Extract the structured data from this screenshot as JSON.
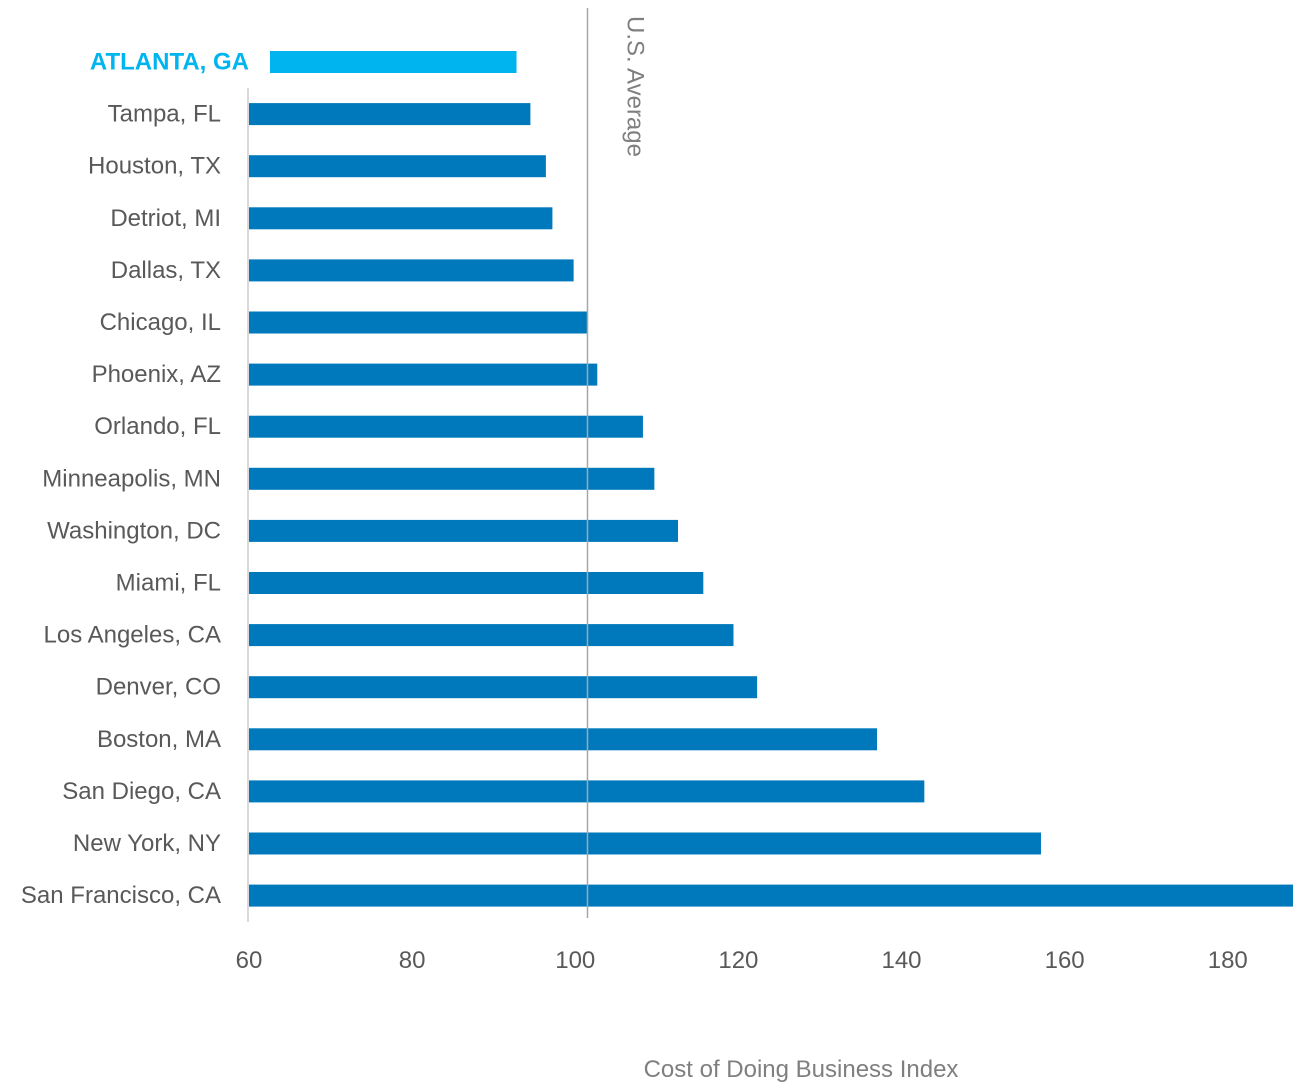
{
  "chart_data": {
    "type": "bar",
    "orientation": "horizontal",
    "categories": [
      "ATLANTA, GA",
      "Tampa, FL",
      "Houston, TX",
      "Detriot, MI",
      "Dallas, TX",
      "Chicago, IL",
      "Phoenix, AZ",
      "Orlando, FL",
      "Minneapolis, MN",
      "Washington, DC",
      "Miami, FL",
      "Los Angeles, CA",
      "Denver, CO",
      "Boston, MA",
      "San Diego, CA",
      "New York, NY",
      "San Francisco, CA"
    ],
    "values": [
      92.8,
      94.5,
      96.4,
      97.2,
      99.8,
      101.5,
      102.7,
      108.3,
      109.7,
      112.6,
      115.7,
      119.4,
      122.3,
      137.0,
      142.8,
      157.1,
      189.0
    ],
    "highlight_category": "ATLANTA, GA",
    "xlabel": "Cost of Doing Business Index",
    "xlim": [
      60,
      188
    ],
    "xticks": [
      60,
      80,
      100,
      120,
      140,
      160,
      180
    ],
    "reference_line": {
      "value": 101.5,
      "label": "U.S. Average"
    },
    "colors": {
      "bar": "#0079BC",
      "highlight": "#00B5EF",
      "reference": "#a6a6a6",
      "axis": "#d9d9d9"
    },
    "grid": false,
    "legend": "none"
  }
}
